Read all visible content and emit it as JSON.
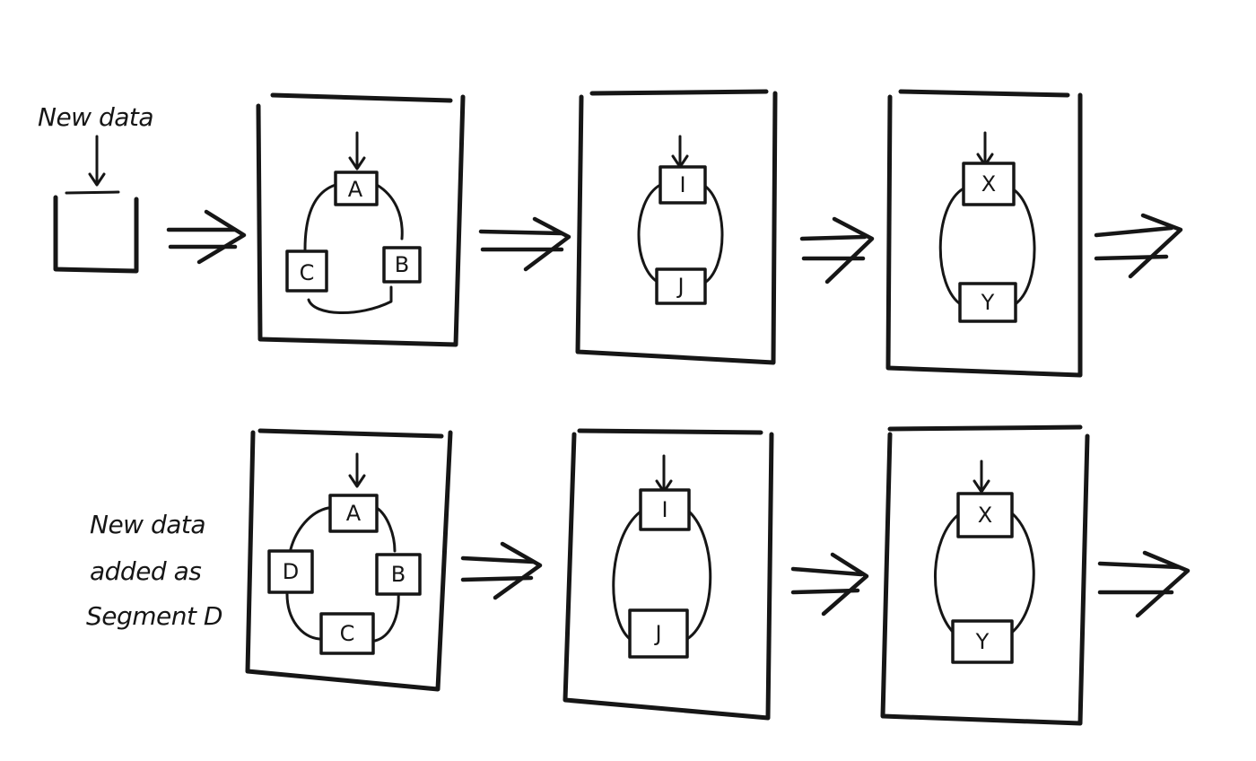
{
  "top_row": {
    "input_label": "New data",
    "stage1": {
      "nodes": [
        "A",
        "B",
        "C"
      ]
    },
    "stage2": {
      "nodes": [
        "I",
        "J"
      ]
    },
    "stage3": {
      "nodes": [
        "X",
        "Y"
      ]
    }
  },
  "bottom_row": {
    "note_lines": [
      "New data",
      "added as",
      "Segment D"
    ],
    "stage1": {
      "nodes": [
        "A",
        "B",
        "C",
        "D"
      ]
    },
    "stage2": {
      "nodes": [
        "I",
        "J"
      ]
    },
    "stage3": {
      "nodes": [
        "X",
        "Y"
      ]
    }
  }
}
